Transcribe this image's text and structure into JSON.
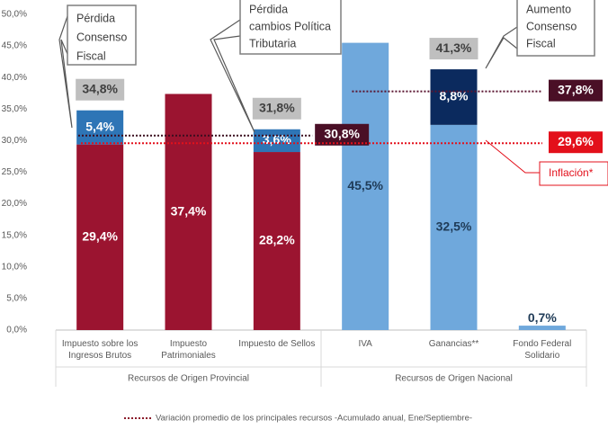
{
  "chart_data": {
    "type": "bar",
    "stacked": true,
    "categories": [
      "Impuesto sobre los Ingresos Brutos",
      "Impuesto Patrimoniales",
      "Impuesto de Sellos",
      "IVA",
      "Ganancias**",
      "Fondo Federal Solidario"
    ],
    "groups": [
      "Recursos de Origen Provincial",
      "Recursos de Origen Nacional"
    ],
    "series": [
      {
        "colors": [
          "#9b1430",
          "#9b1430",
          "#9b1430",
          "#6fa8dc",
          "#6fa8dc",
          "#6fa8dc"
        ],
        "label_colors": [
          "#ffffff",
          "#ffffff",
          "#ffffff",
          "#1f3b57",
          "#1f3b57",
          "#1f3b57"
        ],
        "values": [
          29.4,
          37.4,
          28.2,
          45.5,
          32.5,
          0.7
        ],
        "value_labels": [
          "29,4%",
          "37,4%",
          "28,2%",
          "45,5%",
          "32,5%",
          "0,7%"
        ]
      },
      {
        "colors": [
          "#2e75b6",
          null,
          "#2e75b6",
          null,
          "#0b2a5e",
          null
        ],
        "label_colors": [
          "#ffffff",
          null,
          "#ffffff",
          null,
          "#ffffff",
          null
        ],
        "values": [
          5.4,
          null,
          3.6,
          null,
          8.8,
          null
        ],
        "value_labels": [
          "5,4%",
          null,
          "3,6%",
          null,
          "8,8%",
          null
        ]
      }
    ],
    "totals": {
      "values": [
        34.8,
        null,
        31.8,
        null,
        41.3,
        null
      ],
      "value_labels": [
        "34,8%",
        null,
        "31,8%",
        null,
        "41,3%",
        null
      ],
      "color": "#bfbfbf"
    },
    "reference_lines": [
      {
        "value": 30.8,
        "label": "30,8%",
        "color": "#3b0d1f",
        "box_color": "#4a0f26"
      },
      {
        "value": 37.8,
        "label": "37,8%",
        "color": "#5a1530",
        "box_color": "#4a0f26"
      },
      {
        "value": 29.6,
        "label": "29,6%",
        "color": "#e3101b",
        "box_color": "#e3101b"
      }
    ],
    "annotations": [
      {
        "lines": [
          "Pérdida",
          "Consenso",
          "Fiscal"
        ],
        "color": "#404040"
      },
      {
        "lines": [
          "Pérdida",
          "cambios Política",
          "Tributaria"
        ],
        "color": "#404040"
      },
      {
        "lines": [
          "Aumento",
          "Consenso",
          "Fiscal"
        ],
        "color": "#404040"
      },
      {
        "lines": [
          "Inflación*"
        ],
        "color": "#e3101b"
      }
    ],
    "legend": {
      "label": "Variación promedio de los principales recursos -Acumulado anual, Ene/Septiembre-",
      "color": "#8b1a2b"
    },
    "ylim": [
      0,
      50
    ],
    "yticks": [
      {
        "value": 0,
        "label": "0,0%"
      },
      {
        "value": 5,
        "label": "5,0%"
      },
      {
        "value": 10,
        "label": "10,0%"
      },
      {
        "value": 15,
        "label": "15,0%"
      },
      {
        "value": 20,
        "label": "20,0%"
      },
      {
        "value": 25,
        "label": "25,0%"
      },
      {
        "value": 30,
        "label": "30,0%"
      },
      {
        "value": 35,
        "label": "35,0%"
      },
      {
        "value": 40,
        "label": "40,0%"
      },
      {
        "value": 45,
        "label": "45,0%"
      },
      {
        "value": 50,
        "label": "50,0%"
      }
    ],
    "grid": false
  }
}
